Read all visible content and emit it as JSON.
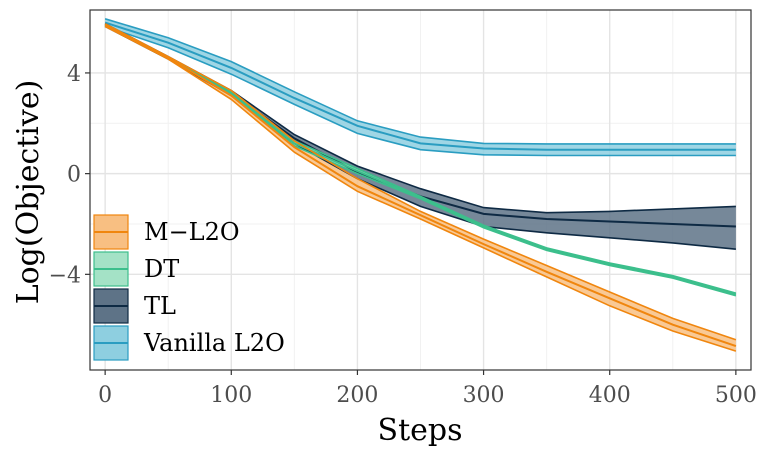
{
  "chart_data": {
    "type": "line",
    "title": "",
    "xlabel": "Steps",
    "ylabel": "Log(Objective)",
    "xlim": [
      -12,
      512
    ],
    "ylim": [
      -7.8,
      6.5
    ],
    "xticks": [
      0,
      100,
      200,
      300,
      400,
      500
    ],
    "yticks": [
      -4,
      0,
      4
    ],
    "xtick_labels": [
      "0",
      "100",
      "200",
      "300",
      "400",
      "500"
    ],
    "ytick_labels": [
      "−4",
      "0",
      "4"
    ],
    "grid": true,
    "legend_position": "bottom-left",
    "series": [
      {
        "name": "Vanilla L2O",
        "color": "#2a9dc1",
        "fill": "#8ecfe0",
        "x": [
          0,
          50,
          100,
          150,
          200,
          250,
          300,
          350,
          400,
          450,
          500
        ],
        "mean": [
          6.0,
          5.2,
          4.2,
          3.0,
          1.9,
          1.2,
          1.0,
          0.95,
          0.95,
          0.95,
          0.95
        ],
        "lower": [
          5.85,
          5.0,
          3.95,
          2.75,
          1.6,
          0.95,
          0.75,
          0.72,
          0.72,
          0.72,
          0.72
        ],
        "upper": [
          6.15,
          5.4,
          4.45,
          3.25,
          2.1,
          1.45,
          1.2,
          1.18,
          1.18,
          1.18,
          1.18
        ]
      },
      {
        "name": "TL",
        "color": "#0e2a44",
        "fill": "#5e7387",
        "x": [
          0,
          50,
          100,
          150,
          200,
          250,
          300,
          350,
          400,
          450,
          500
        ],
        "mean": [
          5.9,
          4.6,
          3.2,
          1.4,
          0.05,
          -0.9,
          -1.6,
          -1.8,
          -1.9,
          -2.0,
          -2.1
        ],
        "lower": [
          5.85,
          4.55,
          3.1,
          1.2,
          -0.2,
          -1.3,
          -2.1,
          -2.35,
          -2.55,
          -2.75,
          -3.0
        ],
        "upper": [
          5.95,
          4.65,
          3.3,
          1.55,
          0.3,
          -0.6,
          -1.35,
          -1.55,
          -1.5,
          -1.4,
          -1.3
        ]
      },
      {
        "name": "DT",
        "color": "#3cbf8c",
        "fill": "#a4e2c6",
        "x": [
          0,
          50,
          100,
          150,
          200,
          250,
          300,
          350,
          400,
          450,
          500
        ],
        "mean": [
          5.9,
          4.6,
          3.2,
          1.2,
          0.1,
          -0.95,
          -2.1,
          -3.0,
          -3.6,
          -4.1,
          -4.8
        ],
        "lower": [
          5.87,
          4.57,
          3.15,
          1.1,
          0.0,
          -1.0,
          -2.15,
          -3.05,
          -3.65,
          -4.15,
          -4.85
        ],
        "upper": [
          5.93,
          4.63,
          3.25,
          1.3,
          0.2,
          -0.9,
          -2.05,
          -2.95,
          -3.55,
          -4.05,
          -4.75
        ]
      },
      {
        "name": "M−L2O",
        "color": "#f0860e",
        "fill": "#f8bf82",
        "x": [
          0,
          50,
          100,
          150,
          200,
          250,
          300,
          350,
          400,
          450,
          500
        ],
        "mean": [
          5.9,
          4.6,
          3.1,
          1.05,
          -0.5,
          -1.65,
          -2.8,
          -3.9,
          -4.95,
          -6.0,
          -6.85
        ],
        "lower": [
          5.85,
          4.55,
          2.95,
          0.85,
          -0.7,
          -1.8,
          -2.95,
          -4.1,
          -5.25,
          -6.25,
          -7.05
        ],
        "upper": [
          5.95,
          4.65,
          3.3,
          1.3,
          -0.2,
          -1.5,
          -2.6,
          -3.65,
          -4.7,
          -5.75,
          -6.6
        ]
      }
    ],
    "legend": [
      {
        "name": "M−L2O",
        "color": "#f0860e",
        "fill": "#f8bf82"
      },
      {
        "name": "DT",
        "color": "#3cbf8c",
        "fill": "#a4e2c6"
      },
      {
        "name": "TL",
        "color": "#0e2a44",
        "fill": "#5e7387"
      },
      {
        "name": "Vanilla L2O",
        "color": "#2a9dc1",
        "fill": "#8ecfe0"
      }
    ]
  }
}
